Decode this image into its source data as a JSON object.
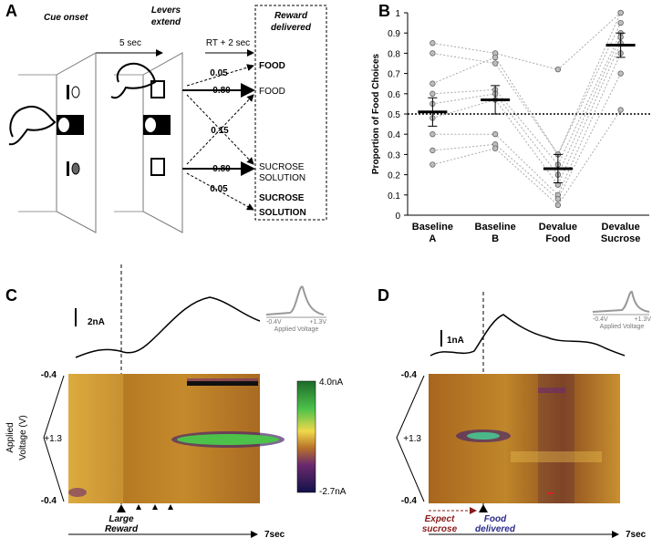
{
  "panel_a": {
    "letter": "A",
    "cue_onset": "Cue onset",
    "levers_extend": [
      "Levers",
      "extend"
    ],
    "reward_delivered": [
      "Reward",
      "delivered"
    ],
    "delay_1": "5 sec",
    "delay_2": "RT + 2 sec",
    "p_food_big": "0.05",
    "p_food": "0.80",
    "p_cross": "0.15",
    "p_sucrose": "0.80",
    "p_sucrose_big": "0.05",
    "food_big": "FOOD",
    "food": "FOOD",
    "sucrose": [
      "SUCROSE",
      "SOLUTION"
    ],
    "sucrose_big": [
      "SUCROSE",
      "SOLUTION"
    ]
  },
  "chart_data": {
    "type": "dot",
    "letter": "B",
    "y_label": "Proportion of Food Choices",
    "categories": [
      [
        "Baseline",
        "A"
      ],
      [
        "Baseline",
        "B"
      ],
      [
        "Devalue",
        "Food"
      ],
      [
        "Devalue",
        "Sucrose"
      ]
    ],
    "means": [
      0.51,
      0.57,
      0.23,
      0.84
    ],
    "errors": [
      0.07,
      0.07,
      0.07,
      0.06
    ],
    "subjects": [
      [
        0.85,
        0.8,
        0.72,
        1.0
      ],
      [
        0.8,
        0.75,
        0.3,
        1.0
      ],
      [
        0.65,
        0.78,
        0.3,
        0.95
      ],
      [
        0.6,
        0.62,
        0.25,
        0.9
      ],
      [
        0.55,
        0.6,
        0.2,
        0.88
      ],
      [
        0.48,
        0.57,
        0.15,
        0.85
      ],
      [
        0.4,
        0.4,
        0.1,
        0.8
      ],
      [
        0.32,
        0.35,
        0.08,
        0.7
      ],
      [
        0.25,
        0.33,
        0.05,
        0.52
      ]
    ],
    "reference_line": 0.5,
    "point_color": "#bdbdbd",
    "mean_color": "#000000",
    "ylim": [
      0,
      1
    ],
    "yticks": [
      0,
      0.1,
      0.2,
      0.3,
      0.4,
      0.5,
      0.6,
      0.7,
      0.8,
      0.9,
      1
    ]
  },
  "panel_c": {
    "letter": "C",
    "scale": "2nA",
    "inset_left": "-0.4V",
    "inset_right": "+1.3V",
    "inset_label": "Applied Voltage",
    "v_top": "-0.4",
    "v_mid": "+1.3",
    "v_bottom": "-0.4",
    "v_label": [
      "Applied",
      "Voltage (V)"
    ],
    "cbar_top": "4.0nA",
    "cbar_bottom": "-2.7nA",
    "event": [
      "Large",
      "Reward"
    ],
    "time": "7sec"
  },
  "panel_d": {
    "letter": "D",
    "scale": "1nA",
    "inset_left": "-0.4V",
    "inset_right": "+1.3V",
    "inset_label": "Applied Voltage",
    "v_top": "-0.4",
    "v_mid": "+1.3",
    "v_bottom": "-0.4",
    "expect": [
      "Expect",
      "sucrose"
    ],
    "delivered": [
      "Food",
      "delivered"
    ],
    "time": "7sec"
  }
}
